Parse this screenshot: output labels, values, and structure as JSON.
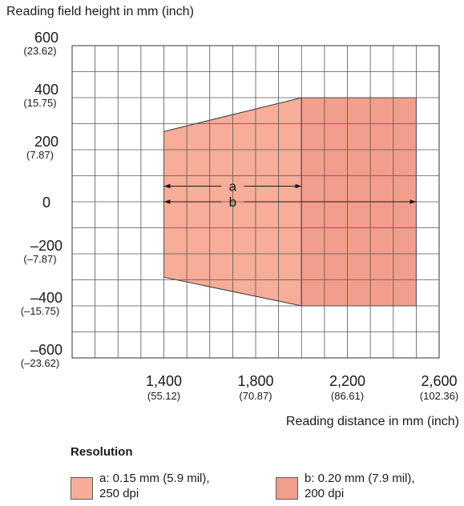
{
  "chart_data": {
    "type": "area",
    "title": "",
    "ylabel": "Reading field height in mm (inch)",
    "xlabel": "Reading distance in mm (inch)",
    "xlim": [
      1000,
      2600
    ],
    "ylim": [
      -600,
      600
    ],
    "x_ticks": [
      {
        "value": 1400,
        "label": "1,400",
        "sub": "(55.12)"
      },
      {
        "value": 1800,
        "label": "1,800",
        "sub": "(70.87)"
      },
      {
        "value": 2200,
        "label": "2,200",
        "sub": "(86.61)"
      },
      {
        "value": 2600,
        "label": "2,600",
        "sub": "(102.36)"
      }
    ],
    "y_ticks": [
      {
        "value": 600,
        "label": "600",
        "sub": "(23.62)"
      },
      {
        "value": 400,
        "label": "400",
        "sub": "(15.75)"
      },
      {
        "value": 200,
        "label": "200",
        "sub": "(7.87)"
      },
      {
        "value": 0,
        "label": "0",
        "sub": ""
      },
      {
        "value": -200,
        "label": "–200",
        "sub": "(–7.87)"
      },
      {
        "value": -400,
        "label": "–400",
        "sub": "(–15.75)"
      },
      {
        "value": -600,
        "label": "–600",
        "sub": "(–23.62)"
      }
    ],
    "grid": true,
    "series": [
      {
        "name": "a",
        "color": "#f7ad98",
        "polygon": [
          [
            1400,
            270
          ],
          [
            2000,
            400
          ],
          [
            2000,
            -400
          ],
          [
            1400,
            -290
          ]
        ],
        "arrow": {
          "x_from": 1400,
          "x_to": 2000,
          "y": 60
        }
      },
      {
        "name": "b",
        "color": "#f29e8c",
        "polygon": [
          [
            2000,
            400
          ],
          [
            2500,
            400
          ],
          [
            2500,
            -400
          ],
          [
            2000,
            -400
          ]
        ],
        "arrow": {
          "x_from": 1400,
          "x_to": 2500,
          "y": 0
        }
      }
    ],
    "legend": {
      "title": "Resolution",
      "items": [
        {
          "text": "a: 0.15 mm (5.9 mil),\n250 dpi",
          "color": "#f7ad98"
        },
        {
          "text": "b: 0.20 mm (7.9 mil),\n200 dpi",
          "color": "#f29e8c"
        }
      ]
    }
  }
}
